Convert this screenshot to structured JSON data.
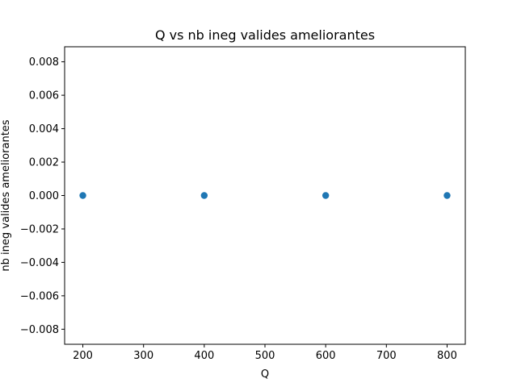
{
  "chart_data": {
    "type": "scatter",
    "title": "Q   vs   nb ineg valides ameliorantes",
    "xlabel": "Q",
    "ylabel": "nb ineg valides ameliorantes",
    "xlim": [
      170,
      830
    ],
    "ylim": [
      -0.0089,
      0.0089
    ],
    "xticks": [
      200,
      300,
      400,
      500,
      600,
      700,
      800
    ],
    "xtick_labels": [
      "200",
      "300",
      "400",
      "500",
      "600",
      "700",
      "800"
    ],
    "yticks": [
      -0.008,
      -0.006,
      -0.004,
      -0.002,
      0.0,
      0.002,
      0.004,
      0.006,
      0.008
    ],
    "ytick_labels": [
      "−0.008",
      "−0.006",
      "−0.004",
      "−0.002",
      "0.000",
      "0.002",
      "0.004",
      "0.006",
      "0.008"
    ],
    "grid": false,
    "marker_color": "#1f77b4",
    "series": [
      {
        "points": [
          {
            "x": 200,
            "y": 0
          },
          {
            "x": 400,
            "y": 0
          },
          {
            "x": 600,
            "y": 0
          },
          {
            "x": 800,
            "y": 0
          }
        ]
      }
    ]
  }
}
